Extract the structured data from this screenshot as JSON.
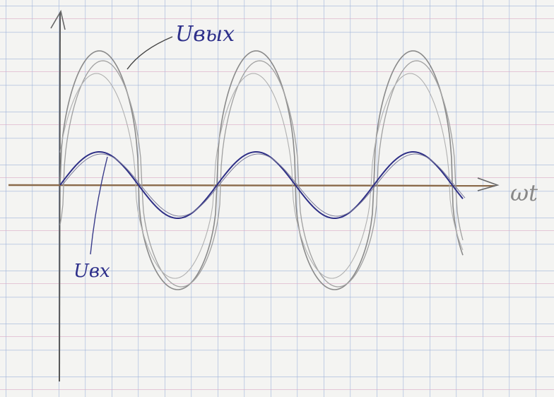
{
  "labels": {
    "output": "Uвых",
    "input": "Uвх",
    "x_axis": "ωt"
  }
}
